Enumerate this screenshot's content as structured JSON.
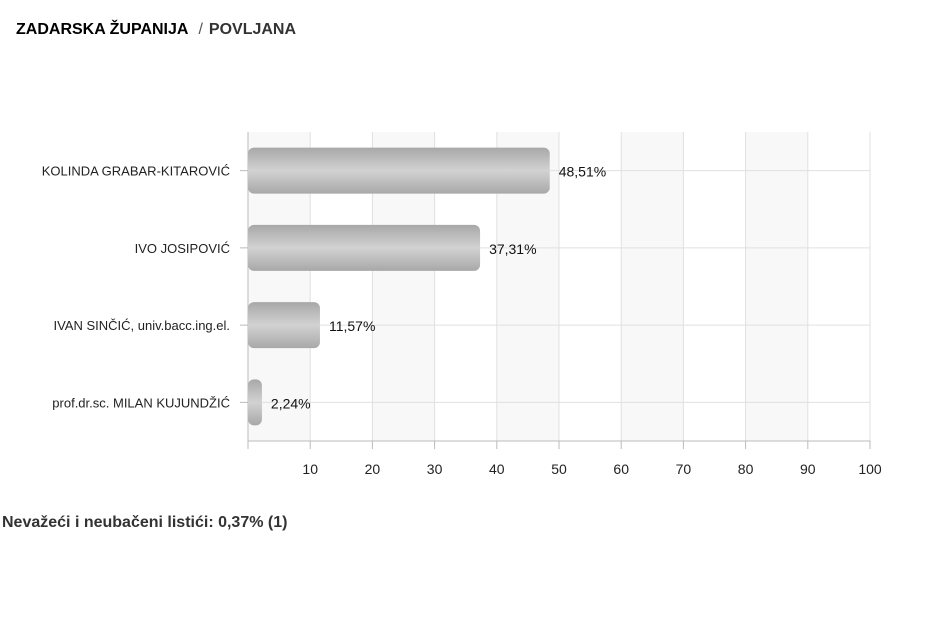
{
  "header": {
    "region": "ZADARSKA ŽUPANIJA",
    "separator": "/",
    "municipality": "POVLJANA"
  },
  "chart_data": {
    "type": "bar",
    "orientation": "horizontal",
    "categories": [
      "KOLINDA GRABAR-KITAROVIĆ",
      "IVO JOSIPOVIĆ",
      "IVAN SINČIĆ, univ.bacc.ing.el.",
      "prof.dr.sc. MILAN KUJUNDŽIĆ"
    ],
    "values": [
      48.51,
      37.31,
      11.57,
      2.24
    ],
    "data_labels": [
      "48,51%",
      "37,31%",
      "11,57%",
      "2,24%"
    ],
    "xlim": [
      0,
      100
    ],
    "x_ticks": [
      "10",
      "20",
      "30",
      "40",
      "50",
      "60",
      "70",
      "80",
      "90",
      "100"
    ],
    "grid": true,
    "bar_color": "#b8b8b8",
    "band_color": "#f8f8f8"
  },
  "footer": {
    "invalid_ballots": "Nevažeći i neubačeni listići: 0,37% (1)"
  }
}
